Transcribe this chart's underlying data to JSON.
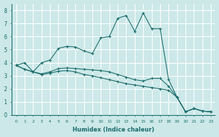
{
  "xlabel": "Humidex (Indice chaleur)",
  "bg_color": "#cce8e8",
  "grid_color": "#ffffff",
  "line_color": "#1a6b6b",
  "xlim": [
    -0.5,
    23.5
  ],
  "ylim": [
    0,
    8.5
  ],
  "xticks": [
    0,
    1,
    2,
    3,
    4,
    5,
    6,
    7,
    8,
    9,
    10,
    11,
    12,
    13,
    14,
    15,
    16,
    17,
    18,
    19,
    20,
    21,
    22,
    23
  ],
  "yticks": [
    0,
    1,
    2,
    3,
    4,
    5,
    6,
    7,
    8
  ],
  "line1_x": [
    0,
    1,
    2,
    3,
    4,
    5,
    6,
    7,
    8,
    9,
    10,
    11,
    12,
    13,
    14,
    15,
    16,
    17,
    18,
    19,
    20,
    21,
    22,
    23
  ],
  "line1_y": [
    3.8,
    4.0,
    3.3,
    4.0,
    4.2,
    5.1,
    5.25,
    5.2,
    4.9,
    4.7,
    5.9,
    6.0,
    7.4,
    7.6,
    6.4,
    7.8,
    6.6,
    6.6,
    2.7,
    1.35,
    0.25,
    0.5,
    0.3,
    0.25
  ],
  "line2_x": [
    0,
    1,
    2,
    3,
    4,
    5,
    6,
    7,
    8,
    9,
    10,
    11,
    12,
    13,
    14,
    15,
    16,
    17,
    18,
    19,
    20,
    21,
    22,
    23
  ],
  "line2_y": [
    3.8,
    3.5,
    3.3,
    3.15,
    3.3,
    3.55,
    3.6,
    3.55,
    3.5,
    3.45,
    3.4,
    3.3,
    3.1,
    2.9,
    2.7,
    2.6,
    2.8,
    2.8,
    2.2,
    1.35,
    0.25,
    0.5,
    0.3,
    0.25
  ],
  "line3_x": [
    0,
    1,
    2,
    3,
    4,
    5,
    6,
    7,
    8,
    9,
    10,
    11,
    12,
    13,
    14,
    15,
    16,
    17,
    18,
    19,
    20,
    21,
    22,
    23
  ],
  "line3_y": [
    3.8,
    3.5,
    3.3,
    3.1,
    3.2,
    3.35,
    3.4,
    3.3,
    3.1,
    3.0,
    2.85,
    2.7,
    2.55,
    2.4,
    2.3,
    2.2,
    2.1,
    2.0,
    1.9,
    1.35,
    0.25,
    0.5,
    0.3,
    0.25
  ]
}
